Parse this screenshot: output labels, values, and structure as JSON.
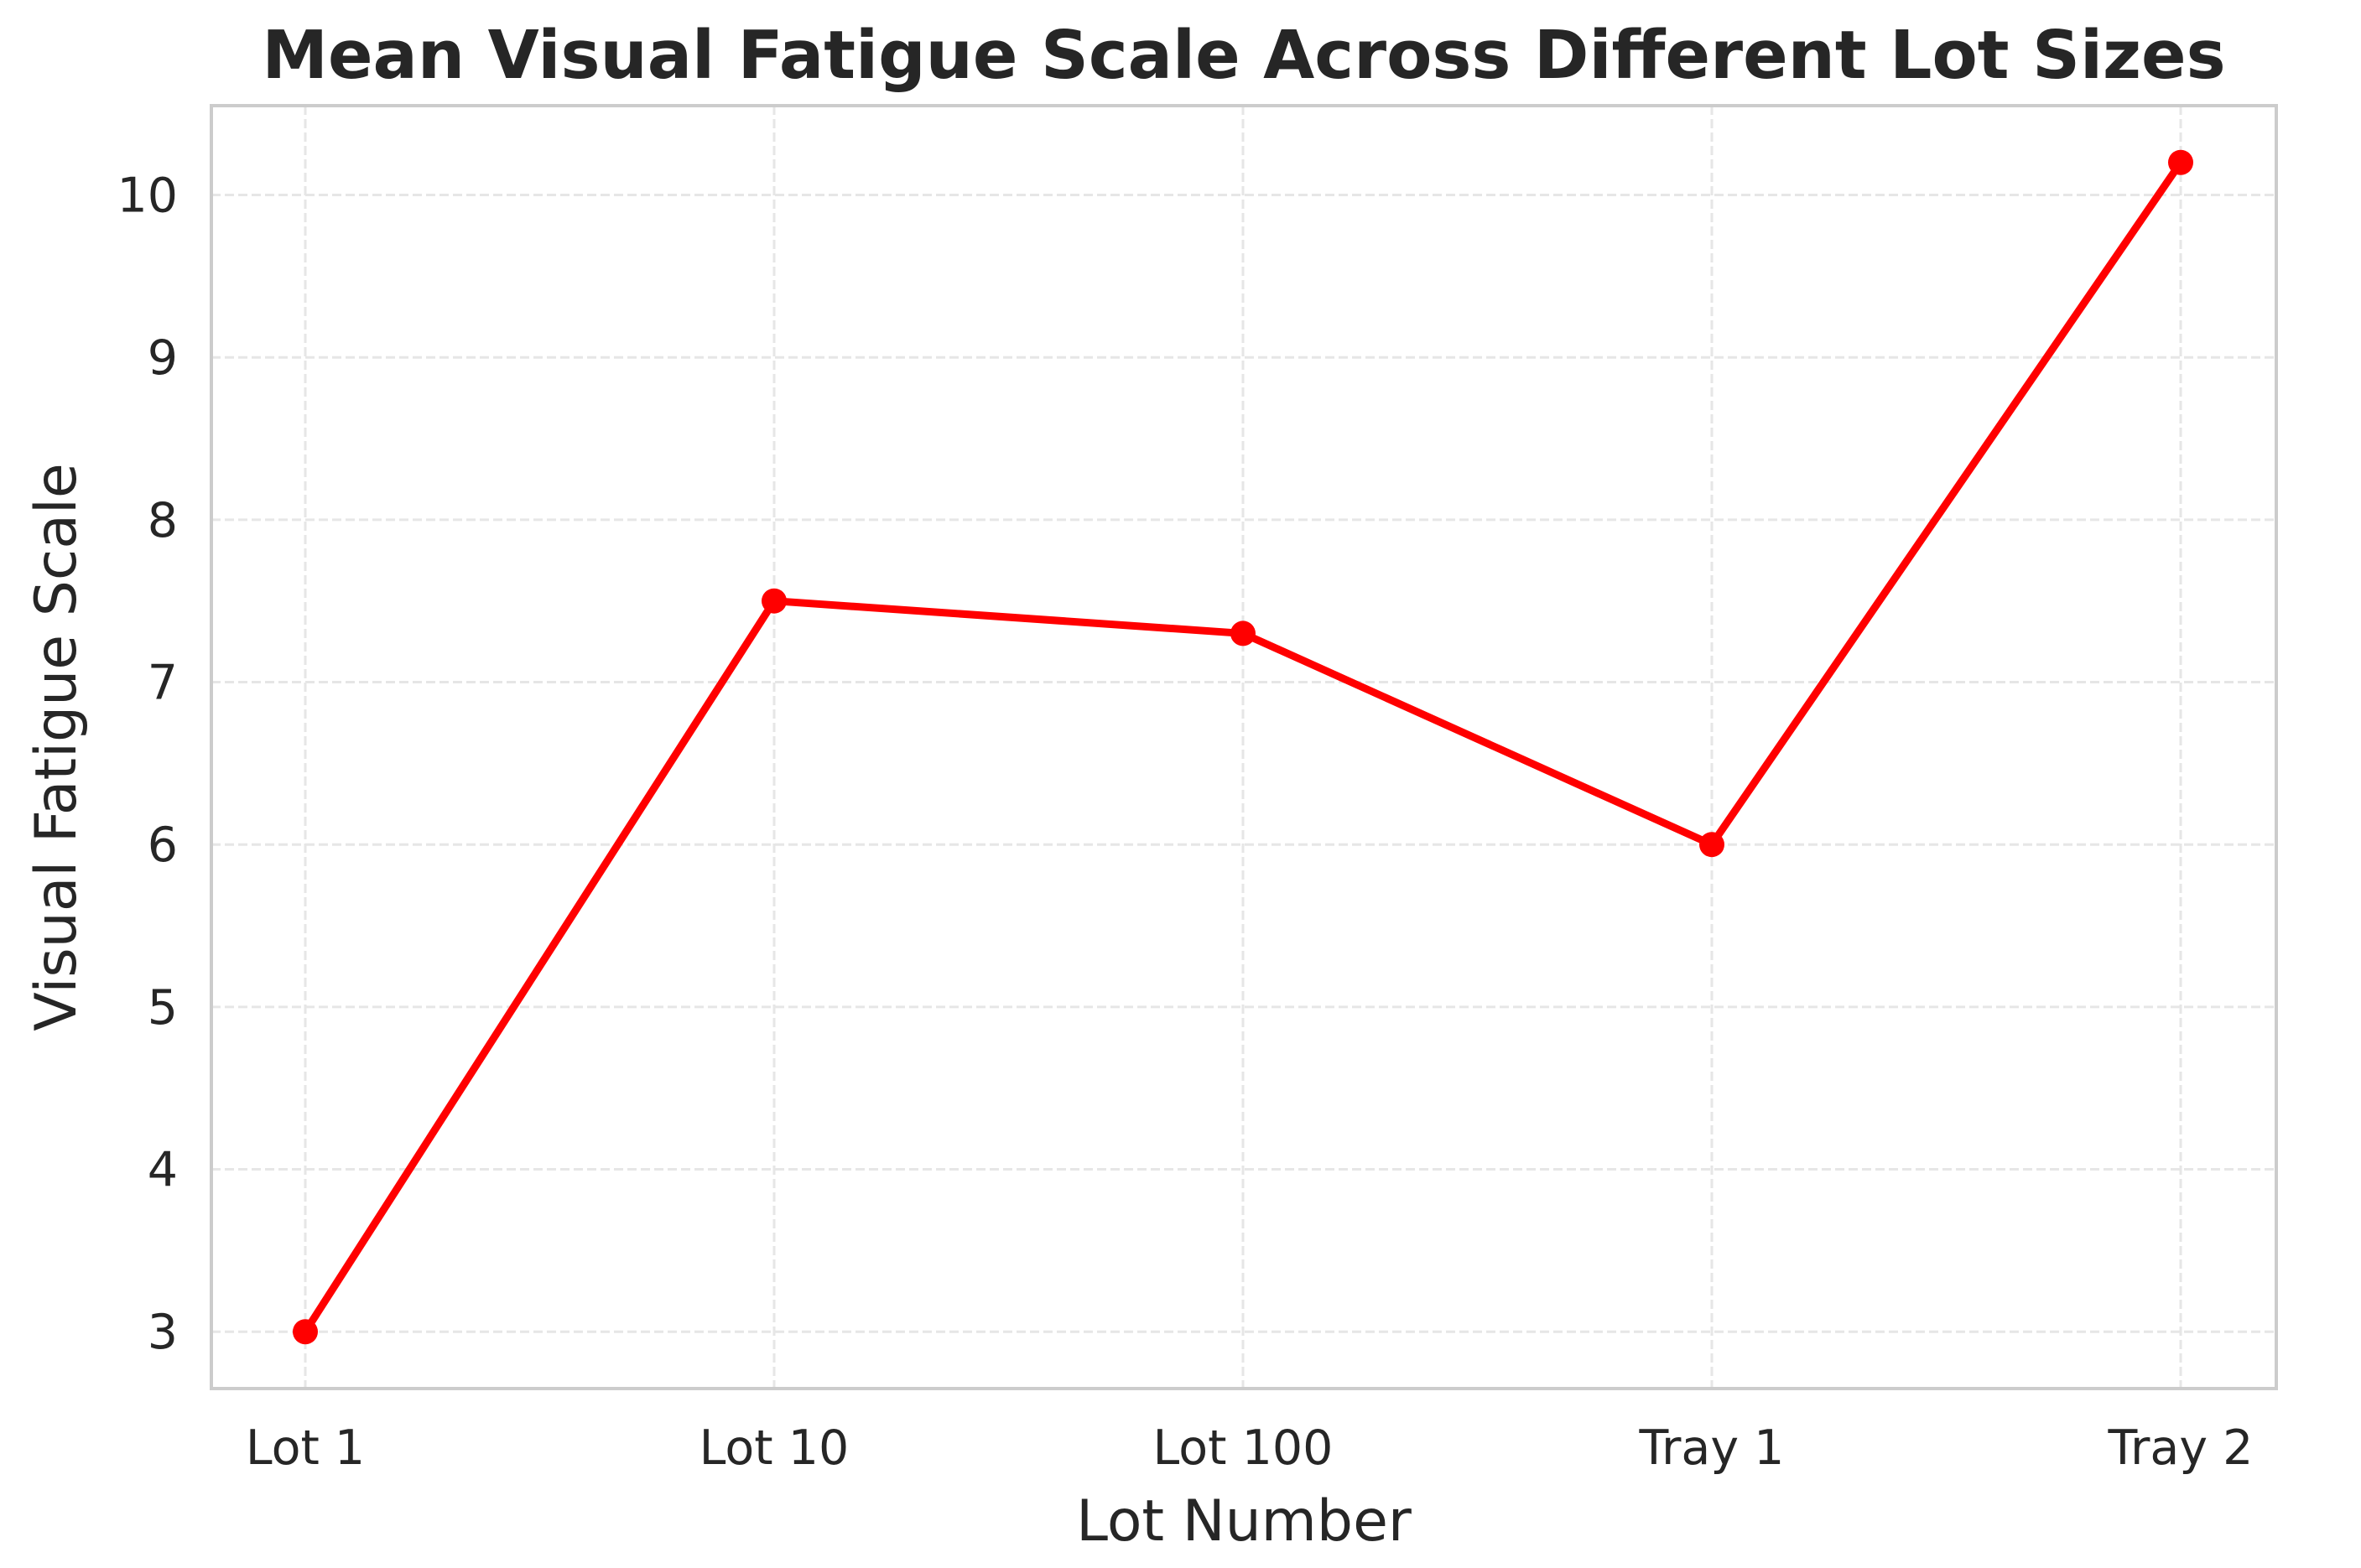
{
  "chart_data": {
    "type": "line",
    "title": "Mean Visual Fatigue Scale Across Different Lot Sizes",
    "xlabel": "Lot Number",
    "ylabel": "Visual Fatigue Scale",
    "categories": [
      "Lot 1",
      "Lot 10",
      "Lot 100",
      "Tray 1",
      "Tray 2"
    ],
    "series": [
      {
        "values": [
          3.0,
          7.5,
          7.3,
          6.0,
          10.2
        ],
        "color": "#ff0000",
        "marker": "circle"
      }
    ],
    "yticks": [
      3,
      4,
      5,
      6,
      7,
      8,
      9,
      10
    ],
    "ylim": [
      2.65,
      10.55
    ],
    "grid": true,
    "grid_style": "dashed",
    "colors": {
      "line": "#ff0000",
      "grid": "#e6e6e6",
      "frame": "#cccccc",
      "text": "#262626"
    }
  }
}
